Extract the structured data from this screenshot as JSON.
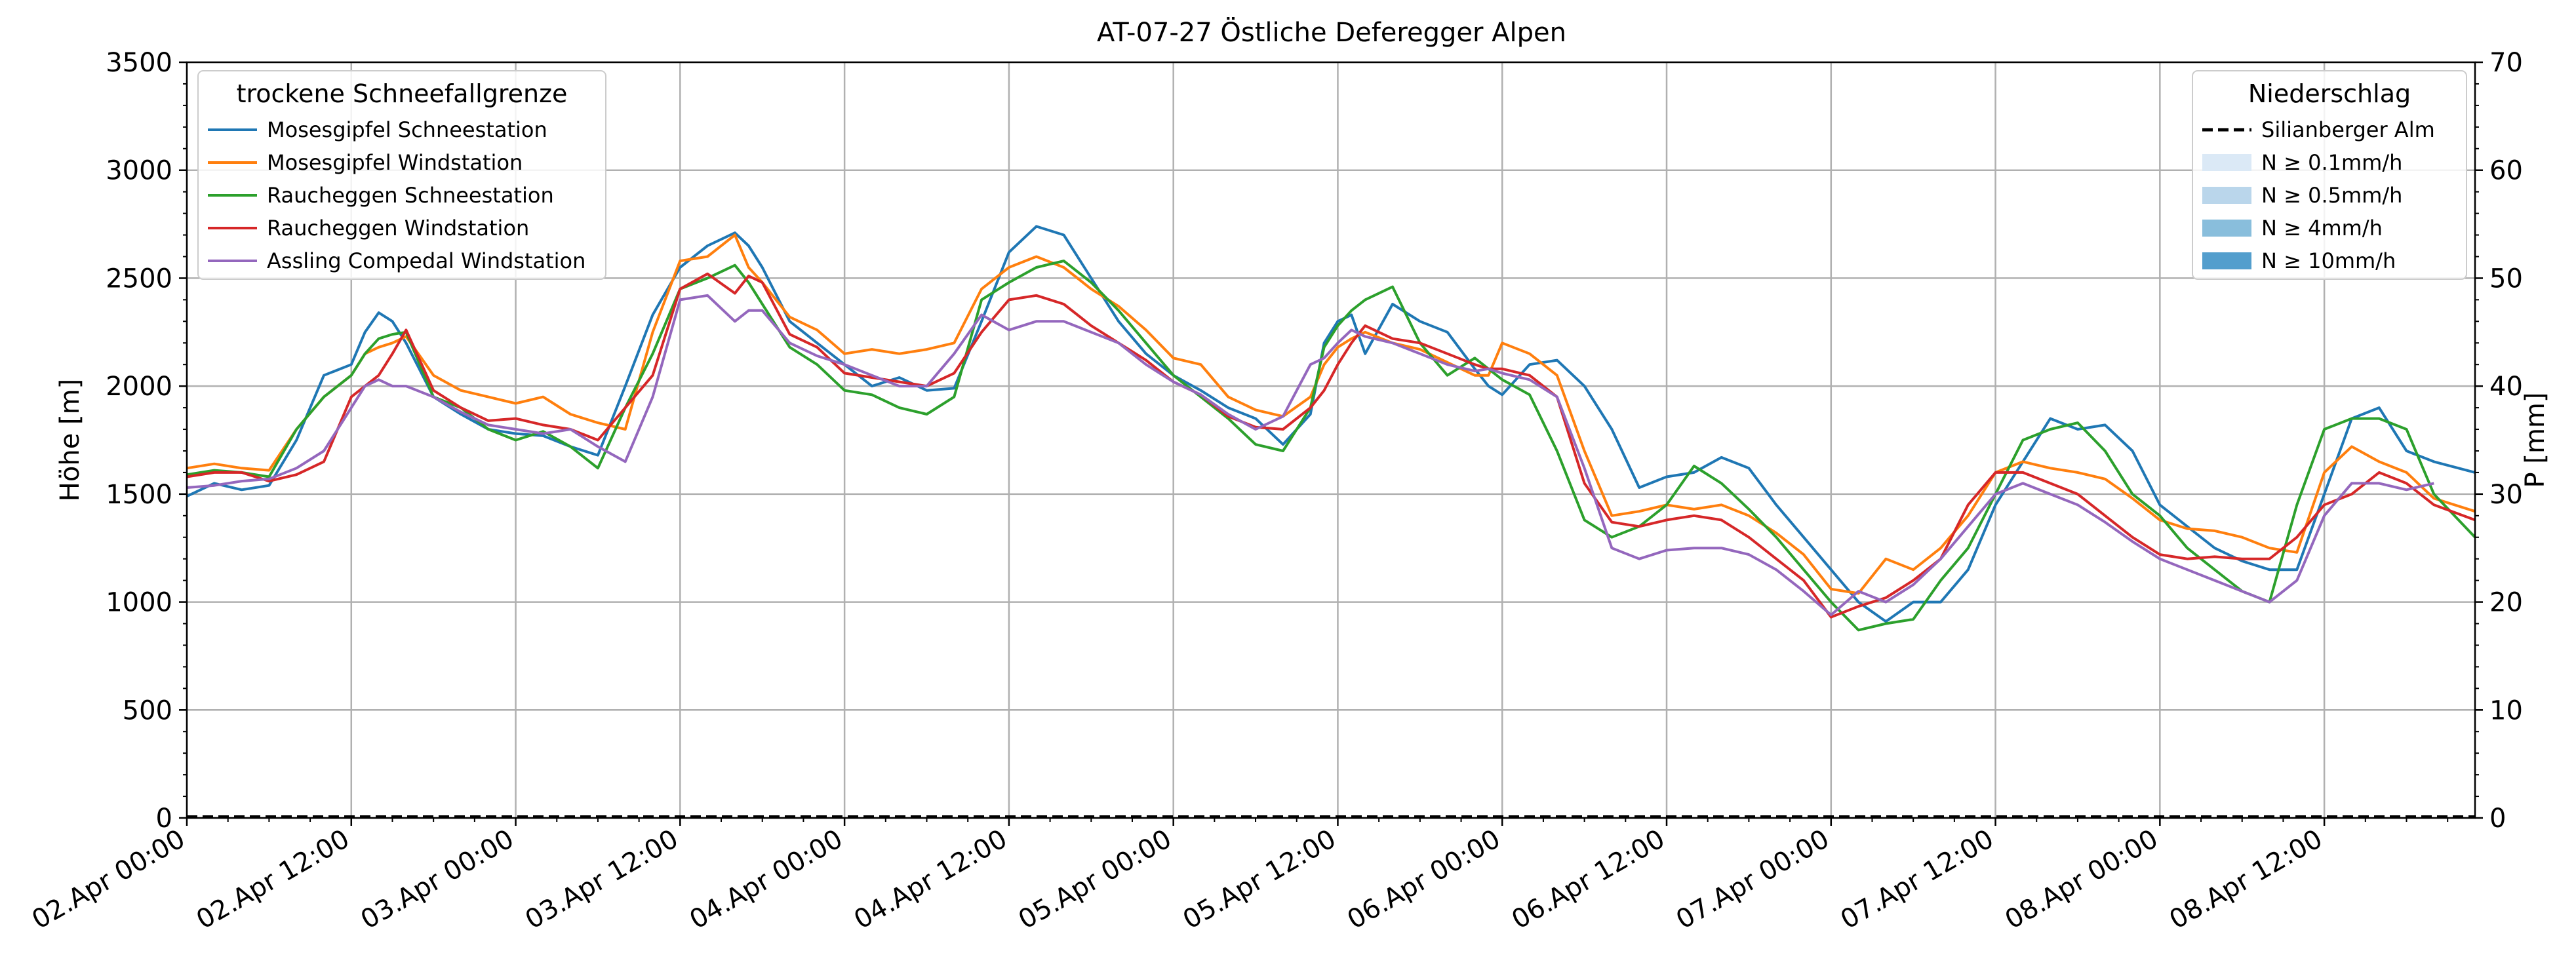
{
  "chart_data": {
    "type": "line",
    "title": "AT-07-27 Östliche Deferegger Alpen",
    "ylabel": "Höhe [m]",
    "ylabel_right": "P [mm]",
    "ylim": [
      0,
      3500
    ],
    "ylim_right": [
      0,
      70
    ],
    "yticks": [
      "0",
      "500",
      "1000",
      "1500",
      "2000",
      "2500",
      "3000",
      "3500"
    ],
    "yticks_right": [
      "0",
      "10",
      "20",
      "30",
      "40",
      "50",
      "60",
      "70"
    ],
    "x_range_hours": [
      0,
      167
    ],
    "x_unit": "hours since 02.Apr 00:00",
    "xticks": [
      {
        "hour": 0,
        "label": "02.Apr 00:00"
      },
      {
        "hour": 12,
        "label": "02.Apr 12:00"
      },
      {
        "hour": 24,
        "label": "03.Apr 00:00"
      },
      {
        "hour": 36,
        "label": "03.Apr 12:00"
      },
      {
        "hour": 48,
        "label": "04.Apr 00:00"
      },
      {
        "hour": 60,
        "label": "04.Apr 12:00"
      },
      {
        "hour": 72,
        "label": "05.Apr 00:00"
      },
      {
        "hour": 84,
        "label": "05.Apr 12:00"
      },
      {
        "hour": 96,
        "label": "06.Apr 00:00"
      },
      {
        "hour": 108,
        "label": "06.Apr 12:00"
      },
      {
        "hour": 120,
        "label": "07.Apr 00:00"
      },
      {
        "hour": 132,
        "label": "07.Apr 12:00"
      },
      {
        "hour": 144,
        "label": "08.Apr 00:00"
      },
      {
        "hour": 156,
        "label": "08.Apr 12:00"
      }
    ],
    "grid": true,
    "legend_left": {
      "title": "trockene Schneefallgrenze",
      "placement": "top-left"
    },
    "legend_right": {
      "title": "Niederschlag",
      "placement": "top-right",
      "entries": [
        {
          "label": "Silianberger Alm",
          "style": "dashed",
          "color": "#000000"
        },
        {
          "label": "N ≥ 0.1mm/h",
          "style": "patch",
          "color": "#dbe9f6"
        },
        {
          "label": "N ≥ 0.5mm/h",
          "style": "patch",
          "color": "#bad6eb"
        },
        {
          "label": "N ≥ 4mm/h",
          "style": "patch",
          "color": "#89bedc"
        },
        {
          "label": "N ≥ 10mm/h",
          "style": "patch",
          "color": "#539ecd"
        }
      ]
    },
    "precipitation": {
      "name": "Silianberger Alm",
      "hours": [
        0,
        167
      ],
      "values": [
        0,
        0
      ]
    },
    "series": [
      {
        "name": "Mosesgipfel Schneestation",
        "color": "#1f77b4",
        "x": [
          0,
          2,
          4,
          6,
          8,
          10,
          12,
          13,
          14,
          15,
          16,
          18,
          20,
          22,
          24,
          26,
          28,
          30,
          32,
          34,
          36,
          38,
          40,
          41,
          42,
          44,
          46,
          48,
          50,
          52,
          54,
          56,
          58,
          60,
          62,
          64,
          66,
          68,
          70,
          72,
          74,
          76,
          78,
          80,
          82,
          83,
          84,
          85,
          86,
          88,
          90,
          92,
          94,
          95,
          96,
          98,
          100,
          102,
          104,
          106,
          108,
          110,
          112,
          114,
          116,
          118,
          120,
          122,
          124,
          126,
          128,
          130,
          132,
          134,
          136,
          138,
          140,
          142,
          144,
          146,
          148,
          150,
          152,
          154,
          156,
          158,
          160,
          162,
          164,
          167
        ],
        "values": [
          1490,
          1550,
          1520,
          1540,
          1750,
          2050,
          2100,
          2250,
          2340,
          2300,
          2200,
          1950,
          1870,
          1800,
          1780,
          1770,
          1720,
          1680,
          2000,
          2330,
          2550,
          2650,
          2710,
          2650,
          2550,
          2300,
          2200,
          2100,
          2000,
          2040,
          1980,
          1990,
          2300,
          2620,
          2740,
          2700,
          2500,
          2300,
          2150,
          2050,
          1980,
          1900,
          1850,
          1730,
          1870,
          2200,
          2300,
          2330,
          2150,
          2380,
          2300,
          2250,
          2080,
          2000,
          1960,
          2100,
          2120,
          2000,
          1800,
          1530,
          1580,
          1600,
          1670,
          1620,
          1450,
          1300,
          1150,
          1000,
          910,
          1000,
          1000,
          1150,
          1450,
          1650,
          1850,
          1800,
          1820,
          1700,
          1450,
          1350,
          1250,
          1190,
          1150,
          1150,
          1500,
          1850,
          1900,
          1700,
          1650,
          1600
        ]
      },
      {
        "name": "Mosesgipfel Windstation",
        "color": "#ff7f0e",
        "x": [
          0,
          2,
          4,
          6,
          8,
          10,
          12,
          13,
          14,
          15,
          16,
          18,
          20,
          22,
          24,
          26,
          28,
          30,
          32,
          34,
          36,
          38,
          40,
          41,
          42,
          44,
          46,
          48,
          50,
          52,
          54,
          56,
          58,
          60,
          62,
          64,
          66,
          68,
          70,
          72,
          74,
          76,
          78,
          80,
          82,
          83,
          84,
          85,
          86,
          88,
          90,
          92,
          94,
          95,
          96,
          98,
          100,
          102,
          104,
          106,
          108,
          110,
          112,
          114,
          116,
          118,
          120,
          122,
          124,
          126,
          128,
          130,
          132,
          134,
          136,
          138,
          140,
          142,
          144,
          146,
          148,
          150,
          152,
          154,
          156,
          158,
          160,
          162,
          164,
          167
        ],
        "values": [
          1620,
          1640,
          1620,
          1610,
          1800,
          1950,
          2050,
          2150,
          2180,
          2200,
          2230,
          2050,
          1980,
          1950,
          1920,
          1950,
          1870,
          1830,
          1800,
          2250,
          2580,
          2600,
          2700,
          2550,
          2480,
          2320,
          2260,
          2150,
          2170,
          2150,
          2170,
          2200,
          2450,
          2550,
          2600,
          2550,
          2450,
          2370,
          2260,
          2130,
          2100,
          1950,
          1890,
          1860,
          1950,
          2100,
          2180,
          2220,
          2250,
          2200,
          2170,
          2110,
          2050,
          2050,
          2200,
          2150,
          2050,
          1700,
          1400,
          1420,
          1450,
          1430,
          1450,
          1400,
          1320,
          1220,
          1060,
          1040,
          1200,
          1150,
          1250,
          1400,
          1600,
          1650,
          1620,
          1600,
          1570,
          1480,
          1380,
          1340,
          1330,
          1300,
          1250,
          1230,
          1600,
          1720,
          1650,
          1600,
          1480,
          1420
        ]
      },
      {
        "name": "Raucheggen Schneestation",
        "color": "#2ca02c",
        "x": [
          0,
          2,
          4,
          6,
          8,
          10,
          12,
          13,
          14,
          15,
          16,
          18,
          20,
          22,
          24,
          26,
          28,
          30,
          32,
          34,
          36,
          38,
          40,
          41,
          42,
          44,
          46,
          48,
          50,
          52,
          54,
          56,
          58,
          60,
          62,
          64,
          66,
          68,
          70,
          72,
          74,
          76,
          78,
          80,
          82,
          83,
          84,
          85,
          86,
          88,
          90,
          92,
          94,
          95,
          96,
          98,
          100,
          102,
          104,
          106,
          108,
          110,
          112,
          114,
          116,
          118,
          120,
          122,
          124,
          126,
          128,
          130,
          132,
          134,
          136,
          138,
          140,
          142,
          144,
          146,
          148,
          150,
          152,
          154,
          156,
          158,
          160,
          162,
          164,
          167
        ],
        "values": [
          1590,
          1610,
          1600,
          1580,
          1800,
          1950,
          2050,
          2150,
          2220,
          2240,
          2250,
          1950,
          1900,
          1800,
          1750,
          1790,
          1720,
          1620,
          1900,
          2150,
          2450,
          2500,
          2560,
          2480,
          2380,
          2180,
          2100,
          1980,
          1960,
          1900,
          1870,
          1950,
          2400,
          2480,
          2550,
          2580,
          2480,
          2350,
          2200,
          2050,
          1950,
          1850,
          1730,
          1700,
          1900,
          2180,
          2280,
          2350,
          2400,
          2460,
          2200,
          2050,
          2130,
          2080,
          2030,
          1960,
          1700,
          1380,
          1300,
          1350,
          1450,
          1630,
          1550,
          1430,
          1300,
          1150,
          1000,
          870,
          900,
          920,
          1100,
          1250,
          1500,
          1750,
          1800,
          1830,
          1700,
          1500,
          1400,
          1250,
          1150,
          1050,
          1000,
          1450,
          1800,
          1850,
          1850,
          1800,
          1500,
          1300
        ]
      },
      {
        "name": "Raucheggen Windstation",
        "color": "#d62728",
        "x": [
          0,
          2,
          4,
          6,
          8,
          10,
          12,
          13,
          14,
          15,
          16,
          18,
          20,
          22,
          24,
          26,
          28,
          30,
          32,
          34,
          36,
          38,
          40,
          41,
          42,
          44,
          46,
          48,
          50,
          52,
          54,
          56,
          58,
          60,
          62,
          64,
          66,
          68,
          70,
          72,
          74,
          76,
          78,
          80,
          82,
          83,
          84,
          85,
          86,
          88,
          90,
          92,
          94,
          95,
          96,
          98,
          100,
          102,
          104,
          106,
          108,
          110,
          112,
          114,
          116,
          118,
          120,
          122,
          124,
          126,
          128,
          130,
          132,
          134,
          136,
          138,
          140,
          142,
          144,
          146,
          148,
          150,
          152,
          154,
          156,
          158,
          160,
          162,
          164,
          167
        ],
        "values": [
          1580,
          1600,
          1600,
          1560,
          1590,
          1650,
          1950,
          2000,
          2050,
          2150,
          2260,
          1980,
          1900,
          1840,
          1850,
          1820,
          1800,
          1750,
          1900,
          2050,
          2450,
          2520,
          2430,
          2510,
          2480,
          2240,
          2180,
          2060,
          2040,
          2020,
          2000,
          2060,
          2250,
          2400,
          2420,
          2380,
          2280,
          2200,
          2120,
          2020,
          1960,
          1860,
          1810,
          1800,
          1900,
          1980,
          2100,
          2200,
          2280,
          2220,
          2200,
          2150,
          2100,
          2080,
          2080,
          2050,
          1950,
          1550,
          1370,
          1350,
          1380,
          1400,
          1380,
          1300,
          1200,
          1100,
          930,
          980,
          1020,
          1100,
          1200,
          1450,
          1600,
          1600,
          1550,
          1500,
          1400,
          1300,
          1220,
          1200,
          1210,
          1200,
          1200,
          1300,
          1450,
          1500,
          1600,
          1550,
          1450,
          1380
        ]
      },
      {
        "name": "Assling Compedal Windstation",
        "color": "#9467bd",
        "x": [
          0,
          2,
          4,
          6,
          8,
          10,
          12,
          13,
          14,
          15,
          16,
          18,
          20,
          22,
          24,
          26,
          28,
          30,
          32,
          34,
          36,
          38,
          40,
          41,
          42,
          44,
          46,
          48,
          50,
          52,
          54,
          56,
          58,
          60,
          62,
          64,
          66,
          68,
          70,
          72,
          74,
          76,
          78,
          80,
          82,
          83,
          84,
          85,
          86,
          88,
          90,
          92,
          94,
          95,
          96,
          98,
          100,
          102,
          104,
          106,
          108,
          110,
          112,
          114,
          116,
          118,
          120,
          122,
          124,
          126,
          128,
          130,
          132,
          134,
          136,
          138,
          140,
          142,
          144,
          146,
          148,
          150,
          152,
          154,
          156,
          158,
          160,
          162,
          164
        ],
        "values": [
          1530,
          1540,
          1560,
          1570,
          1620,
          1700,
          1900,
          2000,
          2030,
          2000,
          2000,
          1950,
          1880,
          1820,
          1800,
          1780,
          1800,
          1720,
          1650,
          1950,
          2400,
          2420,
          2300,
          2350,
          2350,
          2200,
          2140,
          2100,
          2050,
          2000,
          2000,
          2150,
          2330,
          2260,
          2300,
          2300,
          2250,
          2200,
          2100,
          2020,
          1960,
          1870,
          1800,
          1860,
          2100,
          2130,
          2200,
          2260,
          2230,
          2200,
          2150,
          2100,
          2070,
          2080,
          2060,
          2030,
          1950,
          1620,
          1250,
          1200,
          1240,
          1250,
          1250,
          1220,
          1150,
          1050,
          940,
          1050,
          1000,
          1080,
          1200,
          1350,
          1500,
          1550,
          1500,
          1450,
          1370,
          1280,
          1200,
          1150,
          1100,
          1050,
          1000,
          1100,
          1400,
          1550,
          1550,
          1520,
          1550
        ]
      }
    ]
  }
}
